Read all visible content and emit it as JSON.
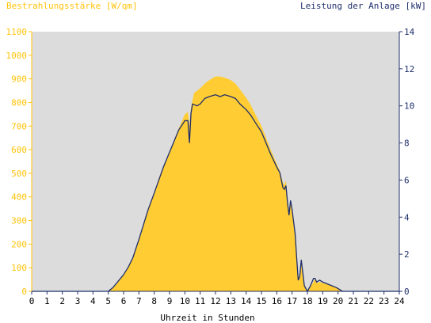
{
  "chart_data": {
    "type": "area",
    "xlabel": "Uhrzeit in Stunden",
    "x_ticks": [
      "0",
      "1",
      "2",
      "3",
      "4",
      "5",
      "6",
      "7",
      "8",
      "9",
      "10",
      "11",
      "12",
      "13",
      "14",
      "15",
      "16",
      "17",
      "18",
      "19",
      "20",
      "21",
      "22",
      "23",
      "24"
    ],
    "xlim": [
      0,
      24
    ],
    "y_left": {
      "label": "Bestrahlungsstärke [W/qm]",
      "ticks": [
        "0",
        "100",
        "200",
        "300",
        "400",
        "500",
        "600",
        "700",
        "800",
        "900",
        "1000",
        "1100"
      ],
      "lim": [
        0,
        1100
      ],
      "color": "#ffc30a"
    },
    "y_right": {
      "label": "Leistung der Anlage [kW]",
      "ticks": [
        "0",
        "2",
        "4",
        "6",
        "8",
        "10",
        "12",
        "14"
      ],
      "lim": [
        0,
        14
      ],
      "color": "#1f2f6b"
    },
    "background_color": "#dcdcdc",
    "grid": false,
    "series": [
      {
        "name": "Bestrahlungsstärke",
        "axis": "left",
        "kind": "area",
        "color": "#ffcc33",
        "points": [
          [
            0,
            0
          ],
          [
            5.0,
            0
          ],
          [
            5.3,
            15
          ],
          [
            5.6,
            35
          ],
          [
            6.0,
            70
          ],
          [
            6.3,
            100
          ],
          [
            6.6,
            140
          ],
          [
            7.0,
            220
          ],
          [
            7.3,
            290
          ],
          [
            7.6,
            350
          ],
          [
            8.0,
            420
          ],
          [
            8.3,
            480
          ],
          [
            8.6,
            530
          ],
          [
            9.0,
            590
          ],
          [
            9.3,
            640
          ],
          [
            9.6,
            690
          ],
          [
            10.0,
            750
          ],
          [
            10.2,
            760
          ],
          [
            10.3,
            700
          ],
          [
            10.4,
            780
          ],
          [
            10.6,
            840
          ],
          [
            10.8,
            850
          ],
          [
            11.0,
            860
          ],
          [
            11.3,
            880
          ],
          [
            11.6,
            895
          ],
          [
            12.0,
            910
          ],
          [
            12.3,
            910
          ],
          [
            12.6,
            905
          ],
          [
            13.0,
            895
          ],
          [
            13.3,
            880
          ],
          [
            13.6,
            855
          ],
          [
            14.0,
            820
          ],
          [
            14.3,
            790
          ],
          [
            14.6,
            750
          ],
          [
            15.0,
            700
          ],
          [
            15.3,
            650
          ],
          [
            15.6,
            600
          ],
          [
            16.0,
            540
          ],
          [
            16.2,
            510
          ],
          [
            16.4,
            460
          ],
          [
            16.5,
            450
          ],
          [
            16.6,
            470
          ],
          [
            16.7,
            400
          ],
          [
            16.8,
            340
          ],
          [
            16.9,
            380
          ],
          [
            17.0,
            350
          ],
          [
            17.2,
            250
          ],
          [
            17.3,
            150
          ],
          [
            17.4,
            50
          ],
          [
            17.5,
            80
          ],
          [
            17.6,
            140
          ],
          [
            17.7,
            90
          ],
          [
            17.8,
            30
          ],
          [
            18.0,
            5
          ],
          [
            18.2,
            20
          ],
          [
            18.4,
            40
          ],
          [
            18.5,
            55
          ],
          [
            18.6,
            35
          ],
          [
            18.8,
            40
          ],
          [
            19.0,
            35
          ],
          [
            19.3,
            30
          ],
          [
            19.6,
            25
          ],
          [
            19.9,
            18
          ],
          [
            20.1,
            10
          ],
          [
            20.3,
            0
          ],
          [
            24,
            0
          ]
        ]
      },
      {
        "name": "Leistung der Anlage",
        "axis": "right",
        "kind": "line",
        "color": "#1f2f6b",
        "points": [
          [
            0,
            0
          ],
          [
            5.0,
            0
          ],
          [
            5.3,
            0.2
          ],
          [
            5.6,
            0.5
          ],
          [
            6.0,
            0.9
          ],
          [
            6.3,
            1.3
          ],
          [
            6.6,
            1.8
          ],
          [
            7.0,
            2.8
          ],
          [
            7.3,
            3.6
          ],
          [
            7.6,
            4.4
          ],
          [
            8.0,
            5.3
          ],
          [
            8.3,
            6.0
          ],
          [
            8.6,
            6.7
          ],
          [
            9.0,
            7.5
          ],
          [
            9.3,
            8.1
          ],
          [
            9.6,
            8.7
          ],
          [
            10.0,
            9.2
          ],
          [
            10.2,
            9.2
          ],
          [
            10.3,
            8.0
          ],
          [
            10.4,
            9.6
          ],
          [
            10.5,
            10.1
          ],
          [
            10.8,
            10.0
          ],
          [
            11.0,
            10.1
          ],
          [
            11.3,
            10.4
          ],
          [
            11.6,
            10.5
          ],
          [
            12.0,
            10.6
          ],
          [
            12.3,
            10.5
          ],
          [
            12.6,
            10.6
          ],
          [
            13.0,
            10.5
          ],
          [
            13.3,
            10.4
          ],
          [
            13.6,
            10.1
          ],
          [
            14.0,
            9.8
          ],
          [
            14.3,
            9.5
          ],
          [
            14.6,
            9.1
          ],
          [
            15.0,
            8.6
          ],
          [
            15.3,
            8.0
          ],
          [
            15.6,
            7.4
          ],
          [
            16.0,
            6.7
          ],
          [
            16.2,
            6.4
          ],
          [
            16.4,
            5.6
          ],
          [
            16.5,
            5.5
          ],
          [
            16.6,
            5.7
          ],
          [
            16.7,
            4.8
          ],
          [
            16.8,
            4.1
          ],
          [
            16.9,
            4.9
          ],
          [
            17.0,
            4.4
          ],
          [
            17.2,
            3.1
          ],
          [
            17.3,
            1.8
          ],
          [
            17.4,
            0.6
          ],
          [
            17.5,
            0.8
          ],
          [
            17.6,
            1.7
          ],
          [
            17.7,
            1.0
          ],
          [
            17.8,
            0.3
          ],
          [
            18.0,
            0.0
          ],
          [
            18.2,
            0.3
          ],
          [
            18.4,
            0.7
          ],
          [
            18.5,
            0.7
          ],
          [
            18.6,
            0.5
          ],
          [
            18.8,
            0.6
          ],
          [
            19.0,
            0.5
          ],
          [
            19.3,
            0.4
          ],
          [
            19.6,
            0.3
          ],
          [
            19.9,
            0.2
          ],
          [
            20.1,
            0.1
          ],
          [
            20.3,
            0
          ],
          [
            24,
            0
          ]
        ]
      }
    ]
  }
}
